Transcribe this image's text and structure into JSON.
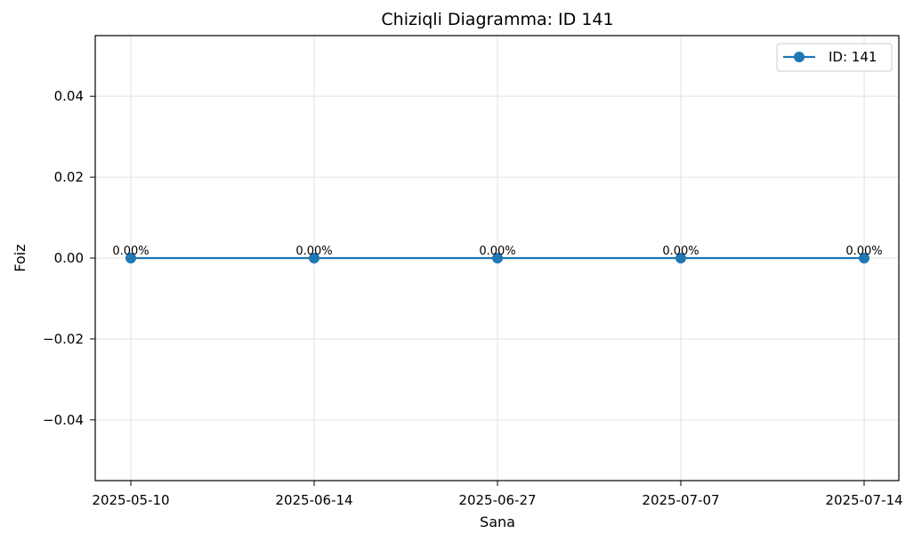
{
  "chart_data": {
    "type": "line",
    "title": "Chiziqli Diagramma: ID 141",
    "xlabel": "Sana",
    "ylabel": "Foiz",
    "categories": [
      "2025-05-10",
      "2025-06-14",
      "2025-06-27",
      "2025-07-07",
      "2025-07-14"
    ],
    "series": [
      {
        "name": "ID: 141",
        "values": [
          0,
          0,
          0,
          0,
          0
        ],
        "data_labels": [
          "0.00%",
          "0.00%",
          "0.00%",
          "0.00%",
          "0.00%"
        ],
        "color": "#1f77b4",
        "marker": "circle"
      }
    ],
    "ylim": [
      -0.055,
      0.055
    ],
    "yticks": [
      -0.04,
      -0.02,
      0.0,
      0.02,
      0.04
    ],
    "ytick_labels": [
      "−0.04",
      "−0.02",
      "0.00",
      "0.02",
      "0.04"
    ],
    "grid": true,
    "legend": "top-right"
  }
}
